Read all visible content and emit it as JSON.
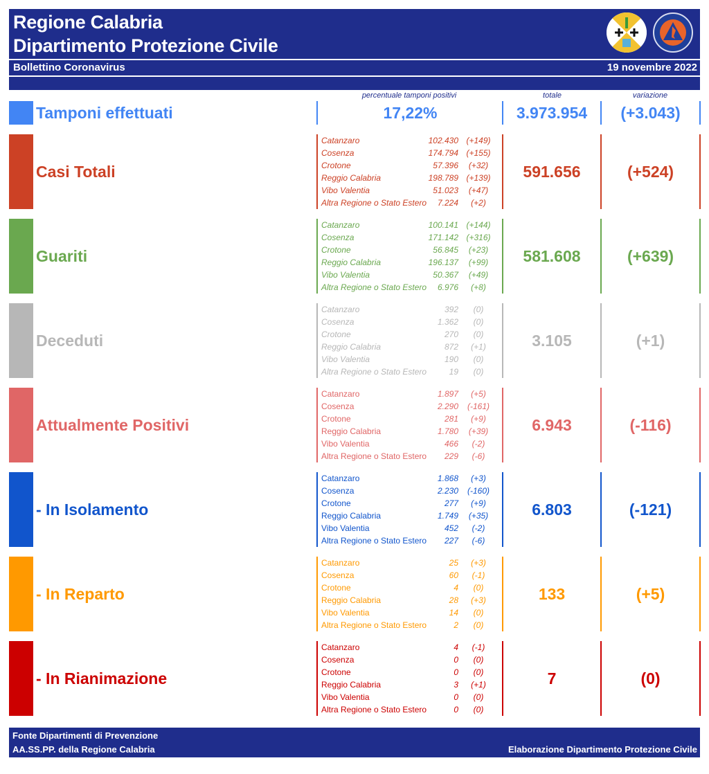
{
  "header": {
    "title_line1": "Regione Calabria",
    "title_line2": "Dipartimento Protezione Civile",
    "subtitle": "Bollettino Coronavirus",
    "date": "19 novembre 2022",
    "logos": [
      "regione-calabria-emblem-icon",
      "protezione-civile-calabria-icon"
    ]
  },
  "columns": {
    "percent_header": "percentuale tamponi positivi",
    "total_header": "totale",
    "variation_header": "variazione"
  },
  "tamponi": {
    "label": "Tamponi effettuati",
    "percent": "17,22%",
    "total": "3.973.954",
    "variation": "(+3.043)",
    "color": "#4285f4"
  },
  "sections": [
    {
      "label": "Casi Totali",
      "color": "#cc4125",
      "total": "591.656",
      "variation": "(+524)",
      "rows": [
        {
          "prov": "Catanzaro",
          "value": "102.430",
          "var": "(+149)"
        },
        {
          "prov": "Cosenza",
          "value": "174.794",
          "var": "(+155)"
        },
        {
          "prov": "Crotone",
          "value": "57.396",
          "var": "(+32)"
        },
        {
          "prov": "Reggio Calabria",
          "value": "198.789",
          "var": "(+139)"
        },
        {
          "prov": "Vibo Valentia",
          "value": "51.023",
          "var": "(+47)"
        },
        {
          "prov": "Altra Regione o Stato Estero",
          "value": "7.224",
          "var": "(+2)"
        }
      ]
    },
    {
      "label": "Guariti",
      "color": "#6aa84f",
      "total": "581.608",
      "variation": "(+639)",
      "rows": [
        {
          "prov": "Catanzaro",
          "value": "100.141",
          "var": "(+144)"
        },
        {
          "prov": "Cosenza",
          "value": "171.142",
          "var": "(+316)"
        },
        {
          "prov": "Crotone",
          "value": "56.845",
          "var": "(+23)"
        },
        {
          "prov": "Reggio Calabria",
          "value": "196.137",
          "var": "(+99)"
        },
        {
          "prov": "Vibo Valentia",
          "value": "50.367",
          "var": "(+49)"
        },
        {
          "prov": "Altra Regione o Stato Estero",
          "value": "6.976",
          "var": "(+8)"
        }
      ]
    },
    {
      "label": "Deceduti",
      "color": "#b7b7b7",
      "total": "3.105",
      "variation": "(+1)",
      "rows": [
        {
          "prov": "Catanzaro",
          "value": "392",
          "var": "(0)"
        },
        {
          "prov": "Cosenza",
          "value": "1.362",
          "var": "(0)"
        },
        {
          "prov": "Crotone",
          "value": "270",
          "var": "(0)"
        },
        {
          "prov": "Reggio Calabria",
          "value": "872",
          "var": "(+1)"
        },
        {
          "prov": "Vibo Valentia",
          "value": "190",
          "var": "(0)"
        },
        {
          "prov": "Altra Regione o Stato Estero",
          "value": "19",
          "var": "(0)"
        }
      ]
    },
    {
      "label": "Attualmente Positivi",
      "color": "#e06666",
      "total": "6.943",
      "variation": "(-116)",
      "rows": [
        {
          "prov": "Catanzaro",
          "value": "1.897",
          "var": "(+5)"
        },
        {
          "prov": "Cosenza",
          "value": "2.290",
          "var": "(-161)"
        },
        {
          "prov": "Crotone",
          "value": "281",
          "var": "(+9)"
        },
        {
          "prov": "Reggio Calabria",
          "value": "1.780",
          "var": "(+39)"
        },
        {
          "prov": "Vibo Valentia",
          "value": "466",
          "var": "(-2)"
        },
        {
          "prov": "Altra Regione o Stato Estero",
          "value": "229",
          "var": "(-6)"
        }
      ]
    },
    {
      "label": " - In Isolamento",
      "color": "#1155cc",
      "total": "6.803",
      "variation": "(-121)",
      "rows": [
        {
          "prov": "Catanzaro",
          "value": "1.868",
          "var": "(+3)"
        },
        {
          "prov": "Cosenza",
          "value": "2.230",
          "var": "(-160)"
        },
        {
          "prov": "Crotone",
          "value": "277",
          "var": "(+9)"
        },
        {
          "prov": "Reggio Calabria",
          "value": "1.749",
          "var": "(+35)"
        },
        {
          "prov": "Vibo Valentia",
          "value": "452",
          "var": "(-2)"
        },
        {
          "prov": "Altra Regione o Stato Estero",
          "value": "227",
          "var": "(-6)"
        }
      ]
    },
    {
      "label": " - In Reparto",
      "color": "#ff9900",
      "total": "133",
      "variation": "(+5)",
      "rows": [
        {
          "prov": "Catanzaro",
          "value": "25",
          "var": "(+3)"
        },
        {
          "prov": "Cosenza",
          "value": "60",
          "var": "(-1)"
        },
        {
          "prov": "Crotone",
          "value": "4",
          "var": "(0)"
        },
        {
          "prov": "Reggio Calabria",
          "value": "28",
          "var": "(+3)"
        },
        {
          "prov": "Vibo Valentia",
          "value": "14",
          "var": "(0)"
        },
        {
          "prov": "Altra Regione o Stato Estero",
          "value": "2",
          "var": "(0)"
        }
      ]
    },
    {
      "label": " - In Rianimazione",
      "color": "#cc0000",
      "total": "7",
      "variation": "(0)",
      "rows": [
        {
          "prov": "Catanzaro",
          "value": "4",
          "var": "(-1)"
        },
        {
          "prov": "Cosenza",
          "value": "0",
          "var": "(0)"
        },
        {
          "prov": "Crotone",
          "value": "0",
          "var": "(0)"
        },
        {
          "prov": "Reggio Calabria",
          "value": "3",
          "var": "(+1)"
        },
        {
          "prov": "Vibo Valentia",
          "value": "0",
          "var": "(0)"
        },
        {
          "prov": "Altra Regione o Stato Estero",
          "value": "0",
          "var": "(0)"
        }
      ]
    }
  ],
  "footer": {
    "source_line1": "Fonte Dipartimenti di Prevenzione",
    "source_line2": "AA.SS.PP.  della Regione Calabria",
    "credit": "Elaborazione Dipartimento Protezione Civile"
  }
}
